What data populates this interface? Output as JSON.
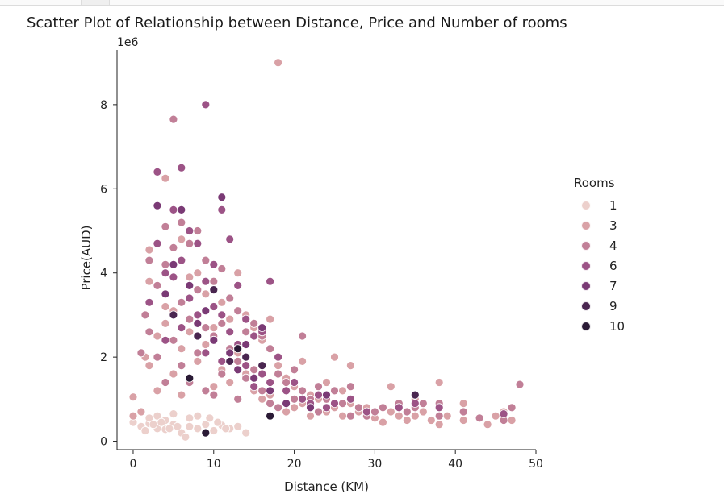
{
  "window": {
    "top_tab": ""
  },
  "chart_data": {
    "type": "scatter",
    "title": "Scatter Plot of Relationship between Distance, Price and Number of rooms",
    "xlabel": "Distance (KM)",
    "ylabel": "Price(AUD)",
    "y_scale_label": "1e6",
    "xlim": [
      -2,
      50
    ],
    "ylim": [
      -0.2,
      9.3
    ],
    "x_ticks": [
      0,
      10,
      20,
      30,
      40,
      50
    ],
    "y_ticks": [
      0,
      2,
      4,
      6,
      8
    ],
    "x_tick_labels": [
      "0",
      "10",
      "20",
      "30",
      "40",
      "50"
    ],
    "y_tick_labels": [
      "0",
      "2",
      "4",
      "6",
      "8"
    ],
    "grid": false,
    "legend": {
      "title": "Rooms",
      "placement": "right",
      "entries": [
        {
          "label": "1",
          "color": "#ecd0cc"
        },
        {
          "label": "3",
          "color": "#d9a1a6"
        },
        {
          "label": "4",
          "color": "#c17f97"
        },
        {
          "label": "6",
          "color": "#9c5386"
        },
        {
          "label": "7",
          "color": "#7a3a75"
        },
        {
          "label": "9",
          "color": "#4a2650"
        },
        {
          "label": "10",
          "color": "#2a1a35"
        }
      ]
    },
    "series": [
      {
        "name": "1",
        "points": [
          [
            0,
            0.45
          ],
          [
            1,
            0.35
          ],
          [
            2,
            0.42
          ],
          [
            3,
            0.3
          ],
          [
            4,
            0.28
          ],
          [
            5,
            0.4
          ],
          [
            6,
            0.2
          ],
          [
            6.5,
            0.1
          ],
          [
            7,
            0.35
          ],
          [
            8,
            0.3
          ],
          [
            9,
            0.4
          ],
          [
            10,
            0.25
          ],
          [
            11,
            0.38
          ],
          [
            12,
            0.3
          ],
          [
            13,
            0.35
          ],
          [
            14,
            0.2
          ],
          [
            2,
            0.55
          ],
          [
            3,
            0.6
          ],
          [
            4,
            0.5
          ],
          [
            5,
            0.65
          ],
          [
            7,
            0.55
          ],
          [
            8,
            0.6
          ],
          [
            1.5,
            0.25
          ],
          [
            2.5,
            0.4
          ],
          [
            3.5,
            0.45
          ],
          [
            4.5,
            0.3
          ],
          [
            5.5,
            0.35
          ],
          [
            9.5,
            0.55
          ],
          [
            10.5,
            0.45
          ],
          [
            11.5,
            0.3
          ]
        ]
      },
      {
        "name": "3",
        "points": [
          [
            0,
            1.05
          ],
          [
            0,
            0.6
          ],
          [
            1,
            0.7
          ],
          [
            1.5,
            2.0
          ],
          [
            2,
            4.55
          ],
          [
            2,
            3.8
          ],
          [
            2,
            1.8
          ],
          [
            3,
            2.5
          ],
          [
            3,
            1.2
          ],
          [
            4,
            6.25
          ],
          [
            4,
            3.2
          ],
          [
            4,
            2.8
          ],
          [
            5,
            5.5
          ],
          [
            5,
            3.1
          ],
          [
            5,
            1.6
          ],
          [
            6,
            4.8
          ],
          [
            6,
            2.2
          ],
          [
            6,
            1.1
          ],
          [
            7,
            3.9
          ],
          [
            7,
            2.6
          ],
          [
            8,
            4.0
          ],
          [
            8,
            1.9
          ],
          [
            9,
            3.5
          ],
          [
            9,
            2.3
          ],
          [
            10,
            2.7
          ],
          [
            10,
            1.3
          ],
          [
            11,
            3.3
          ],
          [
            11,
            1.7
          ],
          [
            12,
            2.9
          ],
          [
            12,
            1.4
          ],
          [
            13,
            4.0
          ],
          [
            13,
            2.1
          ],
          [
            14,
            3.0
          ],
          [
            14,
            1.6
          ],
          [
            15,
            2.7
          ],
          [
            15,
            1.2
          ],
          [
            16,
            2.4
          ],
          [
            16,
            1.0
          ],
          [
            17,
            2.9
          ],
          [
            17,
            1.1
          ],
          [
            18,
            9.0
          ],
          [
            18,
            1.8
          ],
          [
            19,
            1.5
          ],
          [
            19,
            0.7
          ],
          [
            20,
            1.3
          ],
          [
            20,
            0.8
          ],
          [
            21,
            1.9
          ],
          [
            21,
            0.9
          ],
          [
            22,
            1.1
          ],
          [
            22,
            0.6
          ],
          [
            23,
            1.0
          ],
          [
            24,
            1.4
          ],
          [
            24,
            0.7
          ],
          [
            25,
            2.0
          ],
          [
            25,
            0.8
          ],
          [
            26,
            1.2
          ],
          [
            26,
            0.6
          ],
          [
            27,
            1.8
          ],
          [
            27,
            0.9
          ],
          [
            28,
            0.7
          ],
          [
            29,
            0.8
          ],
          [
            30,
            0.55
          ],
          [
            31,
            0.45
          ],
          [
            32,
            1.3
          ],
          [
            32,
            0.7
          ],
          [
            33,
            0.6
          ],
          [
            34,
            0.5
          ],
          [
            35,
            1.0
          ],
          [
            35,
            0.6
          ],
          [
            36,
            0.7
          ],
          [
            37,
            0.5
          ],
          [
            38,
            1.4
          ],
          [
            38,
            0.4
          ],
          [
            39,
            0.6
          ],
          [
            41,
            0.9
          ],
          [
            41,
            0.5
          ],
          [
            44,
            0.4
          ],
          [
            45,
            0.6
          ],
          [
            46,
            0.7
          ],
          [
            47,
            0.5
          ]
        ]
      },
      {
        "name": "4",
        "points": [
          [
            1,
            2.1
          ],
          [
            1.5,
            3.0
          ],
          [
            2,
            4.3
          ],
          [
            2,
            2.6
          ],
          [
            3,
            3.7
          ],
          [
            3,
            2.0
          ],
          [
            4,
            5.1
          ],
          [
            4,
            4.2
          ],
          [
            4,
            1.4
          ],
          [
            5,
            7.65
          ],
          [
            5,
            4.6
          ],
          [
            5,
            2.4
          ],
          [
            6,
            5.2
          ],
          [
            6,
            3.3
          ],
          [
            6,
            1.8
          ],
          [
            7,
            4.7
          ],
          [
            7,
            2.9
          ],
          [
            7,
            1.4
          ],
          [
            8,
            5.0
          ],
          [
            8,
            3.6
          ],
          [
            8,
            2.1
          ],
          [
            9,
            4.3
          ],
          [
            9,
            2.7
          ],
          [
            9,
            1.2
          ],
          [
            10,
            3.8
          ],
          [
            10,
            2.5
          ],
          [
            10,
            1.1
          ],
          [
            11,
            4.1
          ],
          [
            11,
            2.8
          ],
          [
            11,
            1.6
          ],
          [
            12,
            3.4
          ],
          [
            12,
            2.2
          ],
          [
            13,
            3.1
          ],
          [
            13,
            1.9
          ],
          [
            13,
            1.0
          ],
          [
            14,
            2.6
          ],
          [
            14,
            1.5
          ],
          [
            15,
            2.8
          ],
          [
            15,
            1.7
          ],
          [
            16,
            2.5
          ],
          [
            16,
            1.2
          ],
          [
            17,
            2.2
          ],
          [
            17,
            0.9
          ],
          [
            18,
            1.6
          ],
          [
            18,
            0.8
          ],
          [
            19,
            1.4
          ],
          [
            20,
            1.7
          ],
          [
            20,
            1.0
          ],
          [
            21,
            2.5
          ],
          [
            21,
            1.2
          ],
          [
            22,
            1.0
          ],
          [
            23,
            1.3
          ],
          [
            23,
            0.7
          ],
          [
            24,
            1.0
          ],
          [
            25,
            1.2
          ],
          [
            26,
            0.9
          ],
          [
            27,
            1.3
          ],
          [
            27,
            0.6
          ],
          [
            28,
            0.8
          ],
          [
            29,
            0.6
          ],
          [
            30,
            0.7
          ],
          [
            31,
            0.8
          ],
          [
            33,
            0.9
          ],
          [
            34,
            0.7
          ],
          [
            35,
            0.8
          ],
          [
            36,
            0.9
          ],
          [
            38,
            0.9
          ],
          [
            38,
            0.6
          ],
          [
            41,
            0.7
          ],
          [
            43,
            0.55
          ],
          [
            46,
            0.5
          ],
          [
            47,
            0.8
          ],
          [
            48,
            1.35
          ]
        ]
      },
      {
        "name": "6",
        "points": [
          [
            2,
            3.3
          ],
          [
            3,
            6.4
          ],
          [
            3,
            4.7
          ],
          [
            4,
            4.0
          ],
          [
            4,
            2.4
          ],
          [
            5,
            5.5
          ],
          [
            5,
            3.9
          ],
          [
            6,
            6.5
          ],
          [
            6,
            4.3
          ],
          [
            6,
            2.7
          ],
          [
            7,
            5.0
          ],
          [
            7,
            3.4
          ],
          [
            8,
            4.7
          ],
          [
            8,
            3.0
          ],
          [
            9,
            8.0
          ],
          [
            9,
            3.8
          ],
          [
            9,
            2.1
          ],
          [
            10,
            4.2
          ],
          [
            10,
            3.2
          ],
          [
            11,
            5.5
          ],
          [
            11,
            3.0
          ],
          [
            11,
            1.9
          ],
          [
            12,
            4.8
          ],
          [
            12,
            2.6
          ],
          [
            13,
            3.7
          ],
          [
            13,
            2.3
          ],
          [
            14,
            2.9
          ],
          [
            14,
            1.8
          ],
          [
            15,
            2.5
          ],
          [
            15,
            1.3
          ],
          [
            16,
            2.6
          ],
          [
            16,
            1.6
          ],
          [
            17,
            3.8
          ],
          [
            17,
            1.4
          ],
          [
            18,
            2.0
          ],
          [
            19,
            1.2
          ],
          [
            20,
            1.4
          ],
          [
            21,
            1.0
          ],
          [
            22,
            0.9
          ],
          [
            23,
            1.1
          ],
          [
            24,
            0.8
          ],
          [
            25,
            0.9
          ],
          [
            27,
            1.0
          ],
          [
            29,
            0.7
          ],
          [
            33,
            0.8
          ],
          [
            35,
            0.9
          ],
          [
            38,
            0.8
          ],
          [
            46,
            0.65
          ]
        ]
      },
      {
        "name": "7",
        "points": [
          [
            3,
            5.6
          ],
          [
            4,
            3.5
          ],
          [
            5,
            4.2
          ],
          [
            6,
            5.5
          ],
          [
            7,
            3.7
          ],
          [
            8,
            2.8
          ],
          [
            9,
            3.1
          ],
          [
            10,
            2.4
          ],
          [
            11,
            5.8
          ],
          [
            12,
            2.1
          ],
          [
            13,
            1.7
          ],
          [
            14,
            2.3
          ],
          [
            15,
            1.5
          ],
          [
            16,
            2.7
          ],
          [
            17,
            1.2
          ],
          [
            19,
            0.9
          ],
          [
            22,
            0.8
          ],
          [
            24,
            1.1
          ]
        ]
      },
      {
        "name": "9",
        "points": [
          [
            5,
            3.0
          ],
          [
            8,
            2.5
          ],
          [
            10,
            3.6
          ],
          [
            12,
            1.9
          ],
          [
            14,
            2.0
          ],
          [
            16,
            1.8
          ],
          [
            35,
            1.1
          ]
        ]
      },
      {
        "name": "10",
        "points": [
          [
            7,
            1.5
          ],
          [
            9,
            0.2
          ],
          [
            13,
            2.2
          ],
          [
            17,
            0.6
          ]
        ]
      }
    ]
  }
}
